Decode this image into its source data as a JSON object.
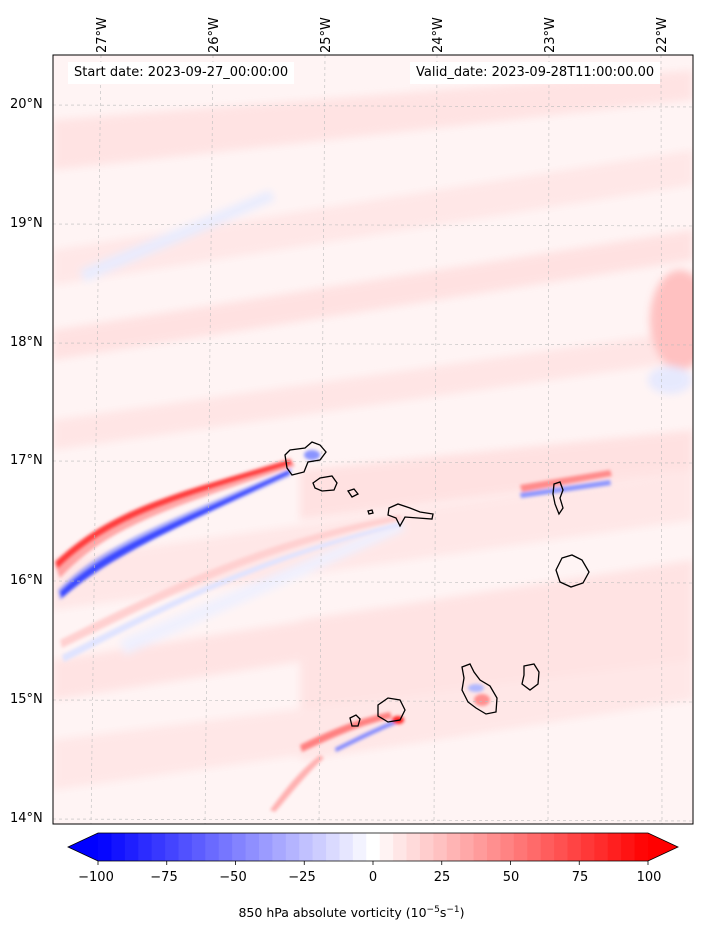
{
  "map": {
    "start_date": "Start date: 2023-09-27_00:00:00",
    "valid_date": "Valid_date: 2023-09-28T11:00:00.00",
    "lon_labels": [
      "27°W",
      "26°W",
      "25°W",
      "24°W",
      "23°W",
      "22°W"
    ],
    "lat_labels": [
      "20°N",
      "19°N",
      "18°N",
      "17°N",
      "16°N",
      "15°N",
      "14°N"
    ],
    "extent": {
      "lon_min": -27.35,
      "lon_max": -21.7,
      "lat_min": 13.95,
      "lat_max": 20.42
    },
    "field": "850 hPa absolute vorticity",
    "colormap": "bwr"
  },
  "colorbar": {
    "ticks": [
      "−100",
      "−75",
      "−50",
      "−25",
      "0",
      "25",
      "50",
      "75",
      "100"
    ],
    "min": -100,
    "max": 100,
    "levels": 41,
    "label": "850 hPa absolute vorticity (10",
    "label_exp1": "−5",
    "label_mid": "s",
    "label_exp2": "−1",
    "label_end": ")",
    "color_min": "#0000ff",
    "color_mid": "#ffffff",
    "color_max": "#ff0000"
  }
}
